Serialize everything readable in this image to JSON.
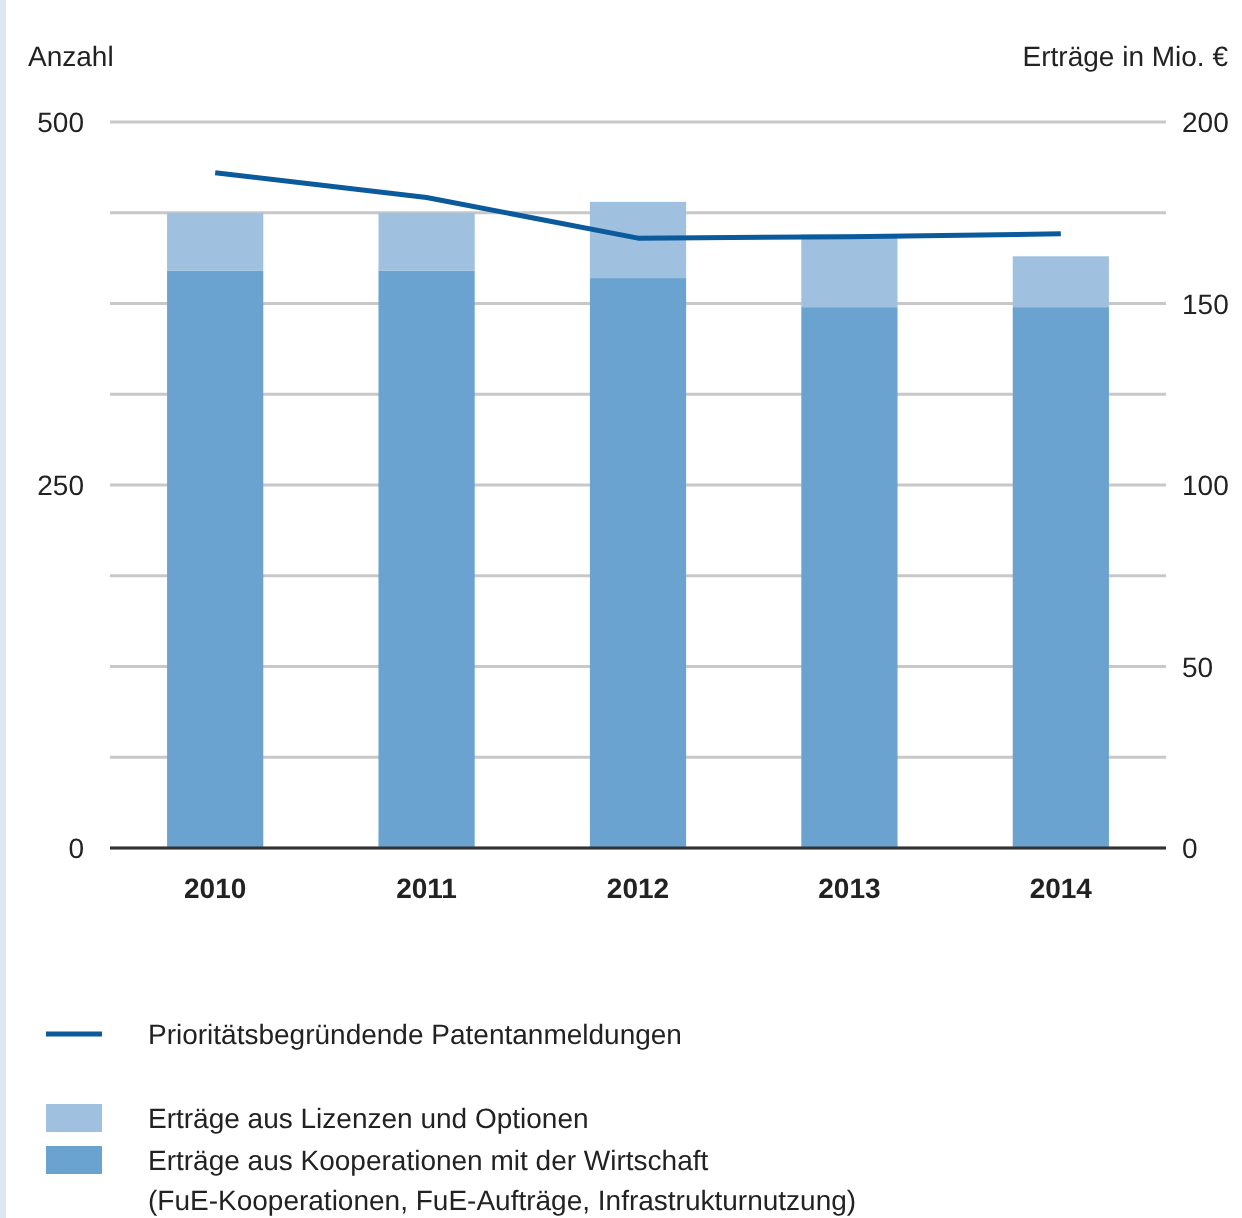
{
  "chart_data": {
    "type": "bar",
    "stacked": true,
    "categories": [
      "2010",
      "2011",
      "2012",
      "2013",
      "2014"
    ],
    "ylabel": "Anzahl",
    "y2label": "Erträge in Mio. €",
    "ylim": [
      0,
      500
    ],
    "yticks": [
      0,
      250,
      500
    ],
    "y2lim": [
      0,
      200
    ],
    "y2ticks": [
      0,
      {
        "value": 25,
        "label": null
      },
      50,
      {
        "value": 75,
        "label": null
      },
      100,
      {
        "value": 125,
        "label": null
      },
      150,
      {
        "value": 175,
        "label": null
      },
      200
    ],
    "grid": true,
    "legend": "bottom",
    "series": [
      {
        "name": "Erträge aus Kooperationen mit der Wirtschaft\n(FuE-Kooperationen, FuE-Aufträge, Infrastrukturnutzung)",
        "color": "#6aa2d0",
        "axis": "y2",
        "values": [
          159,
          159,
          157,
          149,
          149
        ]
      },
      {
        "name": "Erträge aus Lizenzen und Optionen",
        "color": "#9fc0de",
        "axis": "y2",
        "values": [
          16,
          16,
          21,
          20,
          14
        ]
      },
      {
        "name": "Prioritätsbegründende Patentanmeldungen",
        "type": "line",
        "color": "#0a5a9c",
        "axis": "y",
        "values": [
          465,
          448,
          420,
          421,
          423
        ]
      }
    ]
  }
}
